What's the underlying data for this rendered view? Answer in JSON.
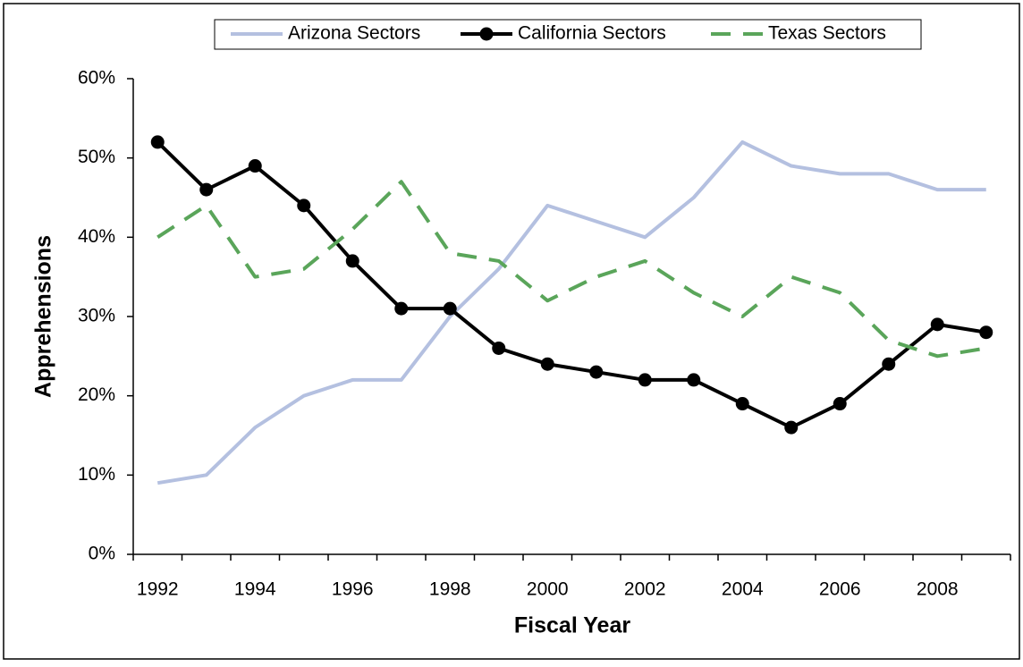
{
  "chart_data": {
    "type": "line",
    "x_label": "Fiscal Year",
    "y_label": "Apprehensions",
    "categories": [
      "1992",
      null,
      "1994",
      null,
      "1996",
      null,
      "1998",
      null,
      "2000",
      null,
      "2002",
      null,
      "2004",
      null,
      "2006",
      null,
      "2008",
      null
    ],
    "series": [
      {
        "name": "Arizona Sectors",
        "color": "#b4c0e0",
        "dash": "none",
        "marker": false,
        "values": [
          9,
          10,
          16,
          20,
          22,
          22,
          30,
          36,
          44,
          42,
          40,
          45,
          52,
          49,
          48,
          48,
          46,
          46
        ]
      },
      {
        "name": "California Sectors",
        "color": "#000000",
        "dash": "none",
        "marker": true,
        "values": [
          52,
          46,
          49,
          44,
          37,
          31,
          31,
          26,
          24,
          23,
          22,
          22,
          19,
          16,
          19,
          24,
          29,
          28
        ]
      },
      {
        "name": "Texas Sectors",
        "color": "#5aa55a",
        "dash": "22 14",
        "marker": false,
        "values": [
          40,
          44,
          35,
          36,
          41,
          47,
          38,
          37,
          32,
          35,
          37,
          33,
          30,
          35,
          33,
          27,
          25,
          26
        ]
      }
    ],
    "ylim": [
      0,
      60
    ],
    "yticks": [
      {
        "value": 0,
        "label": "0%"
      },
      {
        "value": 10,
        "label": "10%"
      },
      {
        "value": 20,
        "label": "20%"
      },
      {
        "value": 30,
        "label": "30%"
      },
      {
        "value": 40,
        "label": "40%"
      },
      {
        "value": 50,
        "label": "50%"
      },
      {
        "value": 60,
        "label": "60%"
      }
    ],
    "legend": "top"
  }
}
